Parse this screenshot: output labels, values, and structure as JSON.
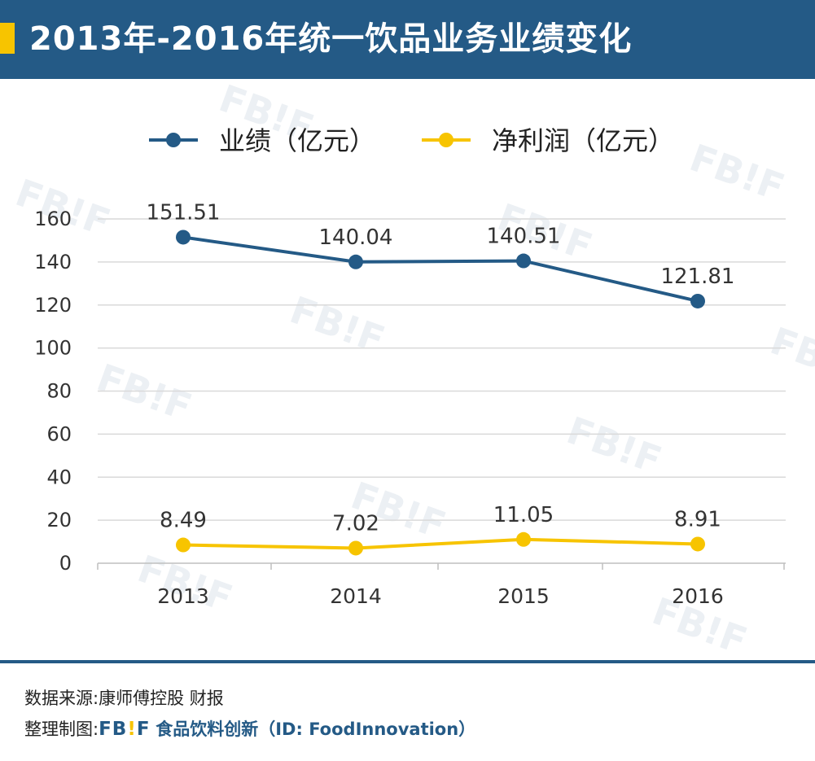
{
  "header": {
    "title": "2013年-2016年统一饮品业务业绩变化",
    "accent_color": "#f7c400",
    "background_color": "#245a86"
  },
  "watermark_text": "FB!F",
  "chart_data": {
    "type": "line",
    "title": "",
    "xlabel": "",
    "ylabel": "",
    "categories": [
      "2013",
      "2014",
      "2015",
      "2016"
    ],
    "ylim": [
      0,
      160
    ],
    "yticks": [
      0,
      20,
      40,
      60,
      80,
      100,
      120,
      140,
      160
    ],
    "grid": true,
    "legend_position": "top",
    "series": [
      {
        "name": "业绩（亿元）",
        "values": [
          151.51,
          140.04,
          140.51,
          121.81
        ],
        "labels": [
          "151.51",
          "140.04",
          "140.51",
          "121.81"
        ],
        "color": "#245a86"
      },
      {
        "name": "净利润（亿元）",
        "values": [
          8.49,
          7.02,
          11.05,
          8.91
        ],
        "labels": [
          "8.49",
          "7.02",
          "11.05",
          "8.91"
        ],
        "color": "#f7c400"
      }
    ]
  },
  "footer": {
    "source_label": "数据来源:康师傅控股 财报",
    "credit_label": "整理制图:",
    "brand_fb": "FB",
    "brand_bang": "!",
    "brand_f": "F",
    "brand_name": "食品饮料创新（ID: FoodInnovation）"
  }
}
